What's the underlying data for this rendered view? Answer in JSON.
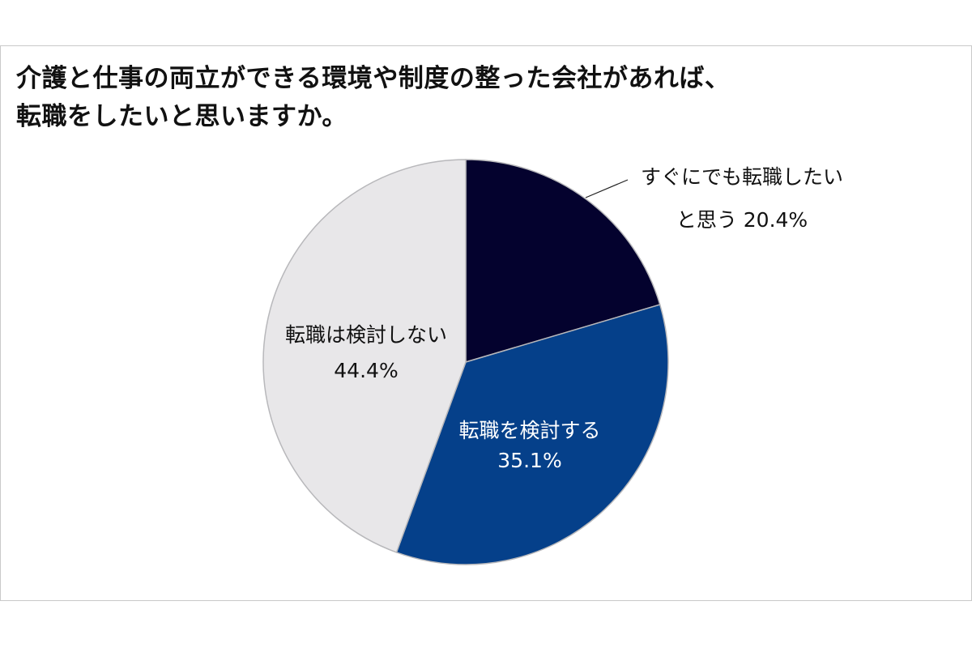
{
  "title_lines": [
    "介護と仕事の両立ができる環境や制度の整った会社があれば、",
    "転職をしたいと思いますか。"
  ],
  "colors": {
    "slice_1": "#04022e",
    "slice_2": "#05408a",
    "slice_3": "#e8e7e9",
    "slice_border": "#b8b8bb",
    "frame_border": "#c9c9c9",
    "text_dark": "#111111",
    "text_light": "#ffffff"
  },
  "chart_data": {
    "type": "pie",
    "title": "介護と仕事の両立ができる環境や制度の整った会社があれば、転職をしたいと思いますか。",
    "unit": "%",
    "slices": [
      {
        "label_lines": [
          "すぐにでも転職したい",
          "と思う 20.4%"
        ],
        "value": 20.4,
        "color": "#04022e",
        "label_position": "outside-callout"
      },
      {
        "label_lines": [
          "転職を検討する",
          "35.1%"
        ],
        "value": 35.1,
        "color": "#05408a",
        "label_position": "inside"
      },
      {
        "label_lines": [
          "転職は検討しない",
          "44.4%"
        ],
        "value": 44.4,
        "color": "#e8e7e9",
        "label_position": "inside"
      }
    ],
    "start_angle_deg": 0,
    "direction": "clockwise",
    "legend": "none"
  }
}
